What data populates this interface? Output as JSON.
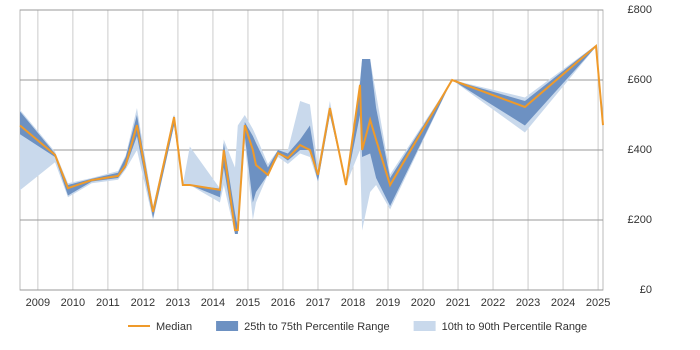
{
  "chart_data": {
    "type": "line",
    "x": [
      2008.49,
      2009.49,
      2009.86,
      2010.54,
      2011.29,
      2011.51,
      2011.83,
      2012.29,
      2012.89,
      2013.14,
      2013.34,
      2014.2,
      2014.31,
      2014.63,
      2014.71,
      2014.91,
      2015.14,
      2015.23,
      2015.57,
      2015.86,
      2016.14,
      2016.49,
      2016.77,
      2017.0,
      2017.34,
      2017.8,
      2018.2,
      2018.26,
      2018.49,
      2018.66,
      2019.06,
      2020.83,
      2022.91,
      2024.94,
      2025.14
    ],
    "series": [
      {
        "name": "Median",
        "color": "#ef9a2a",
        "values": [
          470,
          386,
          291,
          314,
          326,
          357,
          471,
          223,
          494,
          300,
          300,
          286,
          400,
          171,
          171,
          471,
          400,
          357,
          329,
          391,
          377,
          414,
          400,
          329,
          520,
          300,
          586,
          400,
          486,
          429,
          300,
          600,
          523,
          697,
          471
        ]
      },
      {
        "name": "25th to 75th Percentile Range",
        "color": "#6d91c2",
        "low": [
          445,
          380,
          270,
          310,
          320,
          350,
          440,
          205,
          470,
          300,
          300,
          265,
          350,
          160,
          160,
          440,
          250,
          280,
          330,
          390,
          370,
          400,
          400,
          310,
          500,
          300,
          500,
          380,
          390,
          320,
          240,
          600,
          470,
          695,
          471
        ],
        "high": [
          510,
          390,
          300,
          318,
          335,
          380,
          500,
          235,
          500,
          300,
          300,
          290,
          420,
          220,
          180,
          480,
          440,
          420,
          350,
          400,
          390,
          430,
          470,
          330,
          520,
          300,
          590,
          660,
          660,
          520,
          320,
          600,
          540,
          700,
          471
        ]
      },
      {
        "name": "10th to 90th Percentile Range",
        "color": "#c9d9ec",
        "low": [
          285,
          365,
          265,
          305,
          315,
          345,
          400,
          200,
          470,
          300,
          300,
          250,
          300,
          160,
          160,
          420,
          200,
          250,
          330,
          380,
          360,
          390,
          380,
          310,
          500,
          300,
          400,
          170,
          280,
          300,
          230,
          600,
          450,
          695,
          471
        ],
        "high": [
          515,
          395,
          305,
          320,
          340,
          385,
          520,
          240,
          500,
          300,
          410,
          290,
          430,
          350,
          470,
          500,
          460,
          440,
          360,
          400,
          400,
          540,
          530,
          350,
          540,
          300,
          600,
          660,
          660,
          560,
          330,
          600,
          550,
          700,
          471
        ]
      }
    ],
    "xlim": [
      2008.49,
      2025.14
    ],
    "xticks": [
      2009,
      2010,
      2011,
      2012,
      2013,
      2014,
      2015,
      2016,
      2017,
      2018,
      2019,
      2020,
      2021,
      2022,
      2023,
      2024,
      2025
    ],
    "ylim": [
      0,
      800
    ],
    "yticks": [
      {
        "value": 0,
        "label": "£0"
      },
      {
        "value": 200,
        "label": "£200"
      },
      {
        "value": 400,
        "label": "£400"
      },
      {
        "value": 600,
        "label": "£600"
      },
      {
        "value": 800,
        "label": "£800"
      }
    ],
    "grid": true
  }
}
